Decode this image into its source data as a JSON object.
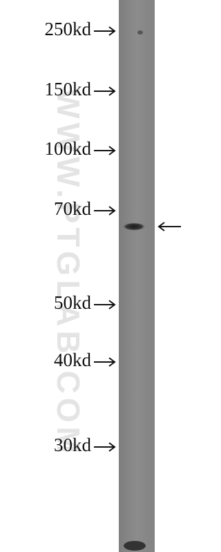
{
  "markers": [
    "250kd",
    "150kd",
    "100kd",
    "70kd",
    "50kd",
    "40kd",
    "30kd"
  ],
  "watermark": "WWW.PTGLAB.COM"
}
